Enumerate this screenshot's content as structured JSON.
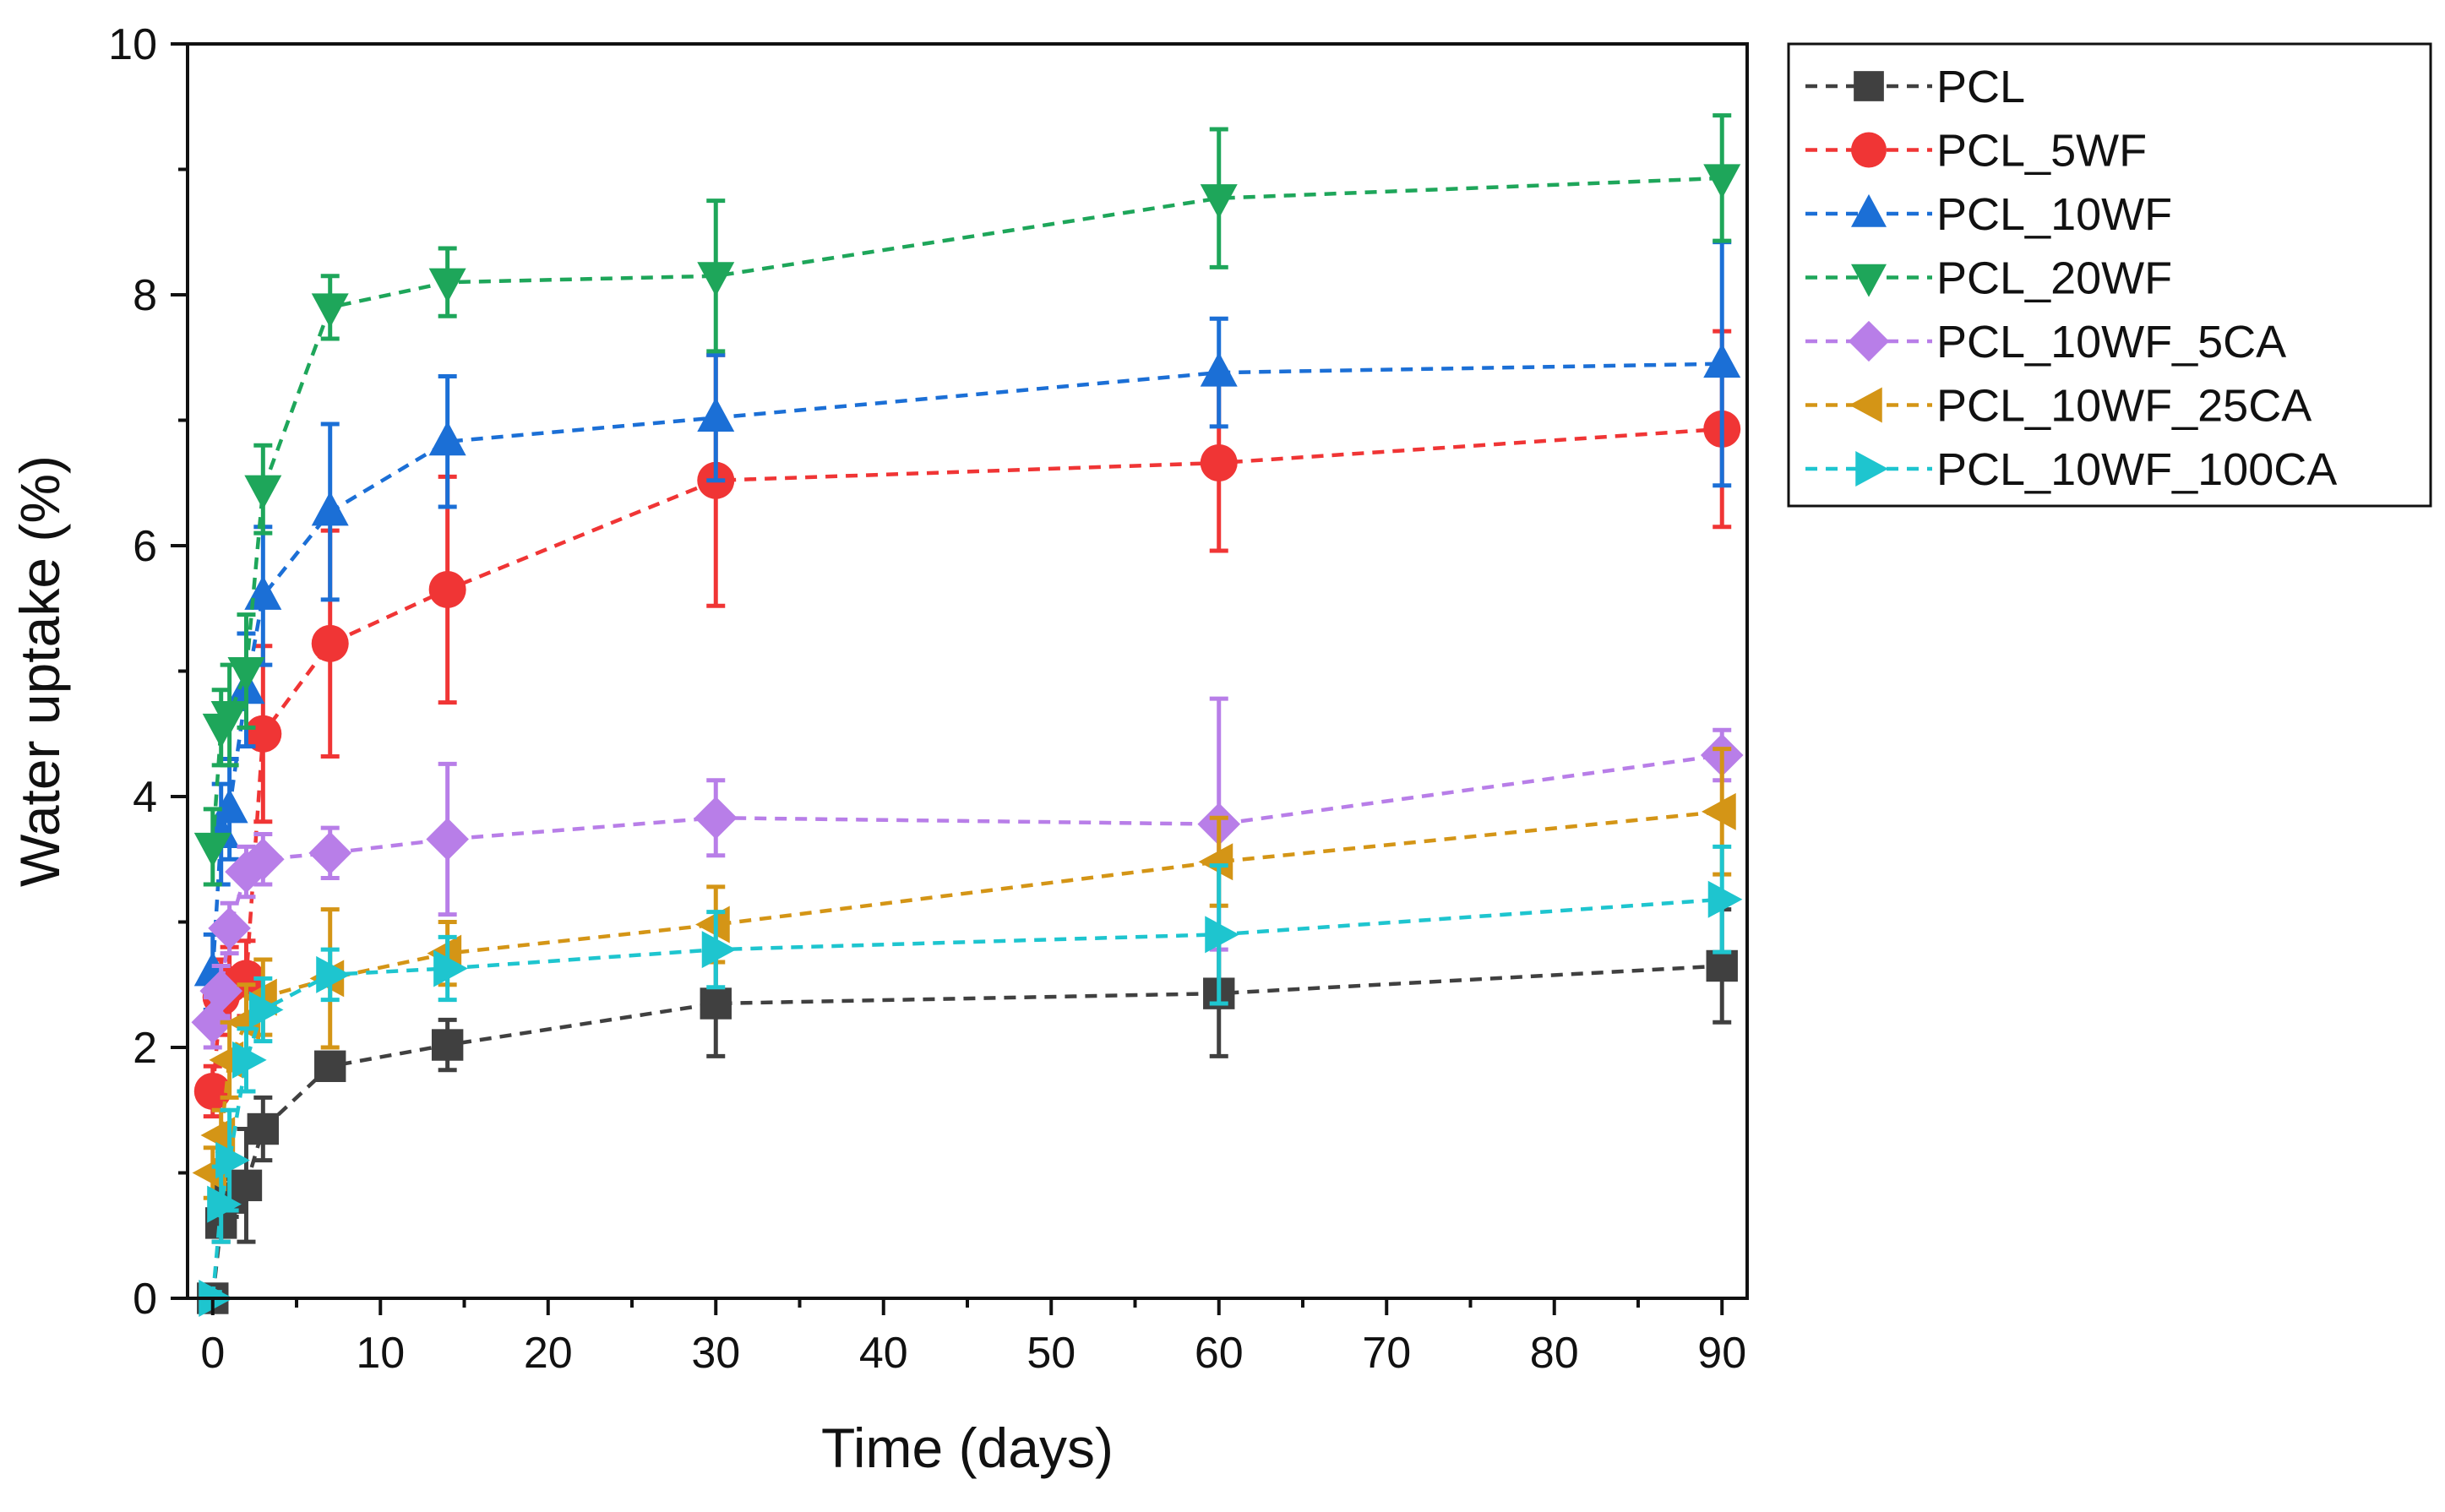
{
  "chart_data": {
    "type": "line",
    "xlabel": "Time (days)",
    "ylabel": "Water uptake (%)",
    "xlim": [
      -1.5,
      91.5
    ],
    "ylim": [
      0,
      10
    ],
    "xticks": [
      0,
      10,
      20,
      30,
      40,
      50,
      60,
      70,
      80,
      90
    ],
    "yticks": [
      0,
      2,
      4,
      6,
      8,
      10
    ],
    "grid": false,
    "legend_position": "outside-top-right",
    "series": [
      {
        "name": "PCL",
        "color": "#404040",
        "marker": "square",
        "x": [
          0,
          0.5,
          1,
          2,
          3,
          7,
          14,
          30,
          60,
          90
        ],
        "y": [
          0.0,
          0.6,
          0.8,
          0.9,
          1.35,
          1.85,
          2.02,
          2.35,
          2.43,
          2.65
        ],
        "err": [
          0.05,
          0.15,
          0.15,
          0.45,
          0.25,
          0.1,
          0.2,
          0.42,
          0.5,
          0.45
        ]
      },
      {
        "name": "PCL_5WF",
        "color": "#f03535",
        "marker": "circle",
        "x": [
          0,
          0.5,
          1,
          2,
          3,
          7,
          14,
          30,
          60,
          90
        ],
        "y": [
          1.65,
          2.4,
          2.5,
          2.55,
          4.5,
          5.22,
          5.65,
          6.52,
          6.66,
          6.93
        ],
        "err": [
          0.2,
          0.3,
          0.3,
          0.3,
          0.7,
          0.9,
          0.9,
          1.0,
          0.7,
          0.78
        ]
      },
      {
        "name": "PCL_10WF",
        "color": "#1b6fd6",
        "marker": "triangle-up",
        "x": [
          0,
          0.5,
          1,
          2,
          3,
          7,
          14,
          30,
          60,
          90
        ],
        "y": [
          2.6,
          3.7,
          3.9,
          4.85,
          5.6,
          6.27,
          6.83,
          7.02,
          7.38,
          7.45
        ],
        "err": [
          0.3,
          0.4,
          0.4,
          0.45,
          0.55,
          0.7,
          0.52,
          0.5,
          0.43,
          0.97
        ]
      },
      {
        "name": "PCL_20WF",
        "color": "#1ea65a",
        "marker": "triangle-down",
        "x": [
          0,
          0.5,
          1,
          2,
          3,
          7,
          14,
          30,
          60,
          90
        ],
        "y": [
          3.6,
          4.55,
          4.65,
          5.0,
          6.45,
          7.9,
          8.1,
          8.15,
          8.77,
          8.93
        ],
        "err": [
          0.3,
          0.3,
          0.4,
          0.45,
          0.35,
          0.25,
          0.27,
          0.6,
          0.55,
          0.5
        ]
      },
      {
        "name": "PCL_10WF_5CA",
        "color": "#b87ee8",
        "marker": "diamond",
        "x": [
          0,
          0.5,
          1,
          2,
          3,
          7,
          14,
          30,
          60,
          90
        ],
        "y": [
          2.2,
          2.45,
          2.95,
          3.4,
          3.5,
          3.55,
          3.66,
          3.83,
          3.78,
          4.33
        ],
        "err": [
          0.2,
          0.2,
          0.2,
          0.2,
          0.2,
          0.2,
          0.6,
          0.3,
          1.0,
          0.2
        ]
      },
      {
        "name": "PCL_10WF_25CA",
        "color": "#d49516",
        "marker": "triangle-left",
        "x": [
          0,
          0.5,
          1,
          2,
          3,
          7,
          14,
          30,
          60,
          90
        ],
        "y": [
          1.0,
          1.3,
          1.9,
          2.2,
          2.4,
          2.55,
          2.75,
          2.98,
          3.48,
          3.88
        ],
        "err": [
          0.2,
          0.2,
          0.3,
          0.3,
          0.3,
          0.55,
          0.25,
          0.3,
          0.35,
          0.5
        ]
      },
      {
        "name": "PCL_10WF_100CA",
        "color": "#1ec5cf",
        "marker": "triangle-right",
        "x": [
          0,
          0.5,
          1,
          2,
          3,
          7,
          14,
          30,
          60,
          90
        ],
        "y": [
          0.0,
          0.75,
          1.1,
          1.9,
          2.3,
          2.58,
          2.63,
          2.78,
          2.9,
          3.18
        ],
        "err": [
          0.05,
          0.3,
          0.4,
          0.25,
          0.25,
          0.2,
          0.25,
          0.3,
          0.55,
          0.42
        ]
      }
    ]
  }
}
